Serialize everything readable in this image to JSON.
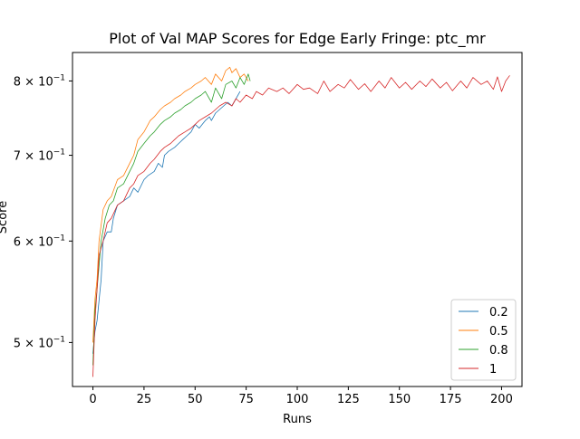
{
  "chart_data": {
    "type": "line",
    "title": "Plot of Val MAP Scores for Edge Early Fringe: ptc_mr",
    "xlabel": "Runs",
    "ylabel": "Score",
    "xlim": [
      -10,
      210
    ],
    "ylim": [
      0.462,
      0.842
    ],
    "yscale": "log",
    "grid": false,
    "legend_position": "lower-right",
    "x_ticks": [
      {
        "value": 0,
        "label": "0"
      },
      {
        "value": 25,
        "label": "25"
      },
      {
        "value": 50,
        "label": "50"
      },
      {
        "value": 75,
        "label": "75"
      },
      {
        "value": 100,
        "label": "100"
      },
      {
        "value": 125,
        "label": "125"
      },
      {
        "value": 150,
        "label": "150"
      },
      {
        "value": 175,
        "label": "175"
      },
      {
        "value": 200,
        "label": "200"
      }
    ],
    "y_ticks": [
      {
        "value": 0.5,
        "mantissa": "5",
        "sep": " × 10",
        "exp": "−1"
      },
      {
        "value": 0.6,
        "mantissa": "6",
        "sep": " × 10",
        "exp": "−1"
      },
      {
        "value": 0.7,
        "mantissa": "7",
        "sep": " × 10",
        "exp": "−1"
      },
      {
        "value": 0.8,
        "mantissa": "8",
        "sep": " × 10",
        "exp": "−1"
      }
    ],
    "series": [
      {
        "name": "0.2",
        "color": "#1f77b4",
        "x": [
          0,
          1,
          2,
          4,
          5,
          7,
          9,
          10,
          12,
          15,
          18,
          20,
          22,
          25,
          27,
          30,
          32,
          34,
          35,
          37,
          40,
          42,
          44,
          46,
          48,
          50,
          52,
          55,
          57,
          58,
          60,
          62,
          64,
          66,
          68,
          70,
          72
        ],
        "values": [
          0.49,
          0.51,
          0.52,
          0.56,
          0.6,
          0.61,
          0.61,
          0.625,
          0.64,
          0.645,
          0.65,
          0.66,
          0.655,
          0.67,
          0.675,
          0.68,
          0.69,
          0.685,
          0.7,
          0.705,
          0.71,
          0.715,
          0.72,
          0.725,
          0.73,
          0.74,
          0.735,
          0.745,
          0.75,
          0.745,
          0.755,
          0.76,
          0.765,
          0.77,
          0.765,
          0.775,
          0.785
        ]
      },
      {
        "name": "0.5",
        "color": "#ff7f0e",
        "x": [
          0,
          1,
          2,
          3,
          5,
          7,
          9,
          12,
          15,
          18,
          20,
          22,
          25,
          28,
          30,
          33,
          35,
          38,
          40,
          43,
          45,
          48,
          50,
          53,
          55,
          58,
          60,
          63,
          65,
          67,
          68,
          70,
          72,
          74,
          76
        ],
        "values": [
          0.5,
          0.54,
          0.56,
          0.6,
          0.635,
          0.645,
          0.65,
          0.67,
          0.675,
          0.69,
          0.7,
          0.72,
          0.73,
          0.745,
          0.75,
          0.76,
          0.765,
          0.77,
          0.775,
          0.78,
          0.785,
          0.79,
          0.795,
          0.8,
          0.805,
          0.795,
          0.81,
          0.8,
          0.815,
          0.82,
          0.812,
          0.818,
          0.805,
          0.81,
          0.8
        ]
      },
      {
        "name": "0.8",
        "color": "#2ca02c",
        "x": [
          0,
          1,
          2,
          4,
          6,
          8,
          10,
          12,
          15,
          18,
          20,
          22,
          25,
          28,
          30,
          33,
          35,
          38,
          40,
          43,
          45,
          48,
          50,
          53,
          55,
          58,
          60,
          63,
          65,
          68,
          70,
          72,
          74,
          76,
          77
        ],
        "values": [
          0.48,
          0.53,
          0.55,
          0.6,
          0.625,
          0.64,
          0.645,
          0.66,
          0.665,
          0.68,
          0.69,
          0.705,
          0.715,
          0.725,
          0.73,
          0.74,
          0.745,
          0.75,
          0.755,
          0.76,
          0.765,
          0.77,
          0.775,
          0.78,
          0.785,
          0.77,
          0.79,
          0.775,
          0.795,
          0.8,
          0.79,
          0.805,
          0.795,
          0.81,
          0.8
        ]
      },
      {
        "name": "1",
        "color": "#d62728",
        "x": [
          0,
          1,
          2,
          3,
          5,
          7,
          9,
          12,
          15,
          18,
          20,
          22,
          25,
          28,
          30,
          33,
          35,
          38,
          40,
          42,
          45,
          48,
          50,
          52,
          55,
          58,
          60,
          62,
          65,
          68,
          70,
          72,
          75,
          78,
          80,
          83,
          86,
          90,
          93,
          96,
          100,
          103,
          106,
          110,
          113,
          116,
          120,
          123,
          126,
          130,
          133,
          136,
          140,
          143,
          146,
          150,
          153,
          156,
          160,
          163,
          166,
          170,
          173,
          176,
          180,
          183,
          186,
          190,
          193,
          196,
          198,
          200,
          202,
          204
        ],
        "values": [
          0.47,
          0.52,
          0.55,
          0.585,
          0.6,
          0.62,
          0.625,
          0.64,
          0.645,
          0.66,
          0.665,
          0.675,
          0.68,
          0.69,
          0.695,
          0.705,
          0.71,
          0.715,
          0.72,
          0.725,
          0.73,
          0.735,
          0.74,
          0.745,
          0.75,
          0.755,
          0.76,
          0.765,
          0.77,
          0.765,
          0.775,
          0.77,
          0.78,
          0.775,
          0.785,
          0.78,
          0.79,
          0.785,
          0.79,
          0.782,
          0.795,
          0.788,
          0.79,
          0.782,
          0.8,
          0.785,
          0.795,
          0.79,
          0.802,
          0.788,
          0.796,
          0.785,
          0.8,
          0.79,
          0.805,
          0.79,
          0.798,
          0.788,
          0.8,
          0.792,
          0.803,
          0.79,
          0.798,
          0.786,
          0.8,
          0.79,
          0.805,
          0.795,
          0.8,
          0.788,
          0.806,
          0.785,
          0.8,
          0.808
        ]
      }
    ]
  }
}
